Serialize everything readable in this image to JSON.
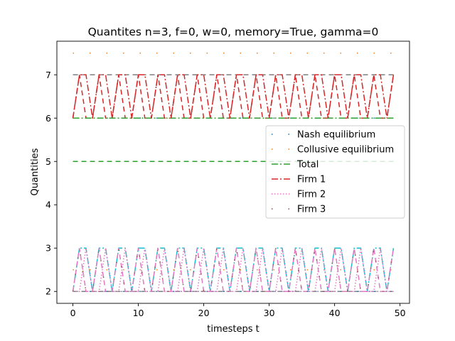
{
  "chart_data": {
    "type": "line",
    "title": "Quantites n=3, f=0, w=0, memory=True, gamma=0",
    "xlabel": "timesteps t",
    "ylabel": "Quantities",
    "xlim": [
      -2.45,
      51.45
    ],
    "ylim": [
      1.725,
      7.775
    ],
    "xticks": [
      0,
      10,
      20,
      30,
      40,
      50
    ],
    "yticks": [
      2,
      3,
      4,
      5,
      6,
      7
    ],
    "grid": false,
    "legend_position": "center-right",
    "t_start": 0,
    "t_end": 49,
    "series": [
      {
        "name": "Nash equilibrium",
        "color": "#1f77b4",
        "linestyle": "dotted-sparse",
        "levels": [
          2,
          6
        ]
      },
      {
        "name": "Collusive equilibrium",
        "color": "#ff7f0e",
        "linestyle": "dotted-sparse",
        "levels": [
          2.5,
          7.5
        ]
      },
      {
        "name": "Total",
        "color": "#2ca02c",
        "linestyle": "dashdot",
        "values": [
          6,
          6,
          6,
          6,
          6,
          6,
          6,
          6,
          6,
          6,
          6,
          6,
          6,
          6,
          6,
          6,
          6,
          6,
          6,
          6,
          6,
          6,
          6,
          6,
          6,
          6,
          6,
          6,
          6,
          6,
          6,
          6,
          6,
          6,
          6,
          6,
          6,
          6,
          6,
          6,
          6,
          6,
          6,
          6,
          6,
          6,
          6,
          6,
          6,
          6
        ]
      },
      {
        "name": "Firm 1",
        "color": "#d62728",
        "linestyle": "dashdot",
        "values": [
          6,
          7,
          7,
          6,
          7,
          7,
          6,
          7,
          7,
          6,
          7,
          7,
          6,
          7,
          7,
          6,
          7,
          7,
          6,
          7,
          7,
          6,
          7,
          7,
          6,
          7,
          7,
          6,
          7,
          7,
          6,
          7,
          7,
          6,
          7,
          7,
          6,
          7,
          7,
          6,
          7,
          7,
          6,
          7,
          7,
          6,
          7,
          7,
          6,
          7
        ]
      },
      {
        "name": "Firm 2",
        "color": "#e377c2",
        "linestyle": "dotted",
        "values": [
          2,
          2,
          3,
          2,
          2,
          3,
          2,
          2,
          3,
          2,
          2,
          3,
          2,
          2,
          3,
          2,
          2,
          3,
          2,
          2,
          3,
          2,
          2,
          3,
          2,
          2,
          3,
          2,
          2,
          3,
          2,
          2,
          3,
          2,
          2,
          3,
          2,
          2,
          3,
          2,
          2,
          3,
          2,
          2,
          3,
          2,
          2,
          3,
          2,
          2
        ]
      },
      {
        "name": "Firm 3",
        "color": "#8c564b",
        "linestyle": "dotted-sparse",
        "values": [
          2,
          3,
          2,
          2,
          3,
          2,
          2,
          3,
          2,
          2,
          3,
          2,
          2,
          3,
          2,
          2,
          3,
          2,
          2,
          3,
          2,
          2,
          3,
          2,
          2,
          3,
          2,
          2,
          3,
          2,
          2,
          3,
          2,
          2,
          3,
          2,
          2,
          3,
          2,
          2,
          3,
          2,
          2,
          3,
          2,
          2,
          3,
          2,
          2,
          3
        ]
      }
    ],
    "extra_lines": [
      {
        "color": "#2ca02c",
        "linestyle": "dashed",
        "level": 5
      },
      {
        "color": "#17becf",
        "linestyle": "dashdot",
        "values": [
          2,
          3,
          3,
          2,
          3,
          3,
          2,
          3,
          3,
          2,
          3,
          3,
          2,
          3,
          3,
          2,
          3,
          3,
          2,
          3,
          3,
          2,
          3,
          3,
          2,
          3,
          3,
          2,
          3,
          3,
          2,
          3,
          3,
          2,
          3,
          3,
          2,
          3,
          3,
          2,
          3,
          3,
          2,
          3,
          3,
          2,
          3,
          3,
          2,
          3
        ]
      },
      {
        "color": "#9467bd",
        "linestyle": "dotted",
        "level": 2
      },
      {
        "color": "#7f7f7f",
        "linestyle": "dashed",
        "values": [
          2,
          2,
          2,
          2,
          2,
          2,
          2,
          2,
          2,
          2,
          2,
          2,
          2,
          2,
          2,
          2,
          2,
          2,
          2,
          2,
          2,
          2,
          2,
          2,
          2,
          2,
          2,
          2,
          2,
          2,
          2,
          2,
          2,
          2,
          2,
          2,
          2,
          2,
          2,
          2,
          2,
          2,
          2,
          2,
          2,
          2,
          2,
          2,
          2,
          2
        ]
      },
      {
        "color": "#e377c2",
        "linestyle": "dashed",
        "values": [
          2,
          3,
          2,
          2,
          3,
          2,
          2,
          3,
          2,
          2,
          3,
          2,
          2,
          3,
          2,
          2,
          3,
          2,
          2,
          3,
          2,
          2,
          3,
          2,
          2,
          3,
          2,
          2,
          3,
          2,
          2,
          3,
          2,
          2,
          3,
          2,
          2,
          3,
          2,
          2,
          3,
          2,
          2,
          3,
          2,
          2,
          3,
          2,
          2,
          3
        ]
      },
      {
        "color": "#d62728",
        "linestyle": "dashed",
        "values": [
          6,
          7,
          6,
          6,
          7,
          6,
          6,
          7,
          6,
          6,
          7,
          6,
          6,
          7,
          6,
          6,
          7,
          6,
          6,
          7,
          6,
          6,
          7,
          6,
          6,
          7,
          6,
          6,
          7,
          6,
          6,
          7,
          6,
          6,
          7,
          6,
          6,
          7,
          6,
          6,
          7,
          6,
          6,
          7,
          6,
          6,
          7,
          6,
          6,
          7
        ]
      },
      {
        "color": "#7f7f7f",
        "linestyle": "dashed",
        "level": 7
      }
    ]
  }
}
